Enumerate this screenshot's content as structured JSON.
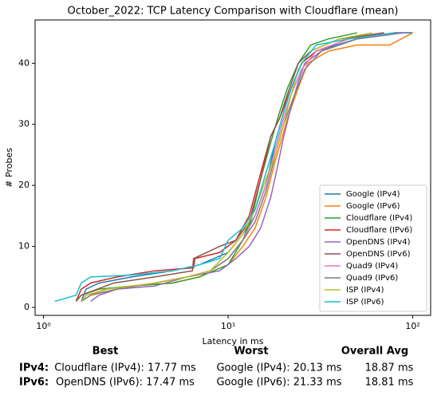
{
  "chart_data": {
    "type": "line",
    "title": "October_2022: TCP Latency Comparison with Cloudflare (mean)",
    "xlabel": "Latency in ms",
    "ylabel": "# Probes",
    "xscale": "log",
    "xlim": [
      0.9,
      125
    ],
    "ylim": [
      -1.3,
      47.1
    ],
    "xticks": [
      {
        "value": 1,
        "label": "10⁰"
      },
      {
        "value": 10,
        "label": "10¹"
      },
      {
        "value": 100,
        "label": "10²"
      }
    ],
    "yticks": [
      0,
      10,
      20,
      30,
      40
    ],
    "legend": "lower right",
    "series": [
      {
        "name": "Google (IPv4)",
        "color": "#1f77b4",
        "x": [
          1.6,
          1.7,
          2,
          3,
          5,
          7,
          10,
          12,
          14,
          16,
          18,
          20,
          22,
          25,
          30,
          50,
          80,
          100
        ],
        "values": [
          1,
          3,
          4,
          5,
          6,
          7,
          9,
          12,
          15,
          20,
          27,
          32,
          36,
          40,
          42,
          44,
          45,
          45
        ]
      },
      {
        "name": "Google (IPv6)",
        "color": "#ff7f0e",
        "x": [
          1.6,
          1.8,
          2.2,
          3,
          5,
          7,
          10,
          12,
          14,
          16,
          18,
          21,
          24,
          27,
          35,
          50,
          75,
          100
        ],
        "values": [
          1,
          2,
          3,
          3.5,
          4,
          5,
          7,
          10,
          13,
          18,
          24,
          31,
          36,
          40,
          42,
          43,
          43,
          45
        ]
      },
      {
        "name": "Cloudflare (IPv4)",
        "color": "#2ca02c",
        "x": [
          1.5,
          1.6,
          2,
          3,
          5,
          7,
          10,
          12,
          13.5,
          15,
          17,
          19,
          21,
          24,
          28,
          35,
          50
        ],
        "values": [
          1,
          2,
          3,
          3.5,
          4,
          5,
          7,
          11,
          15,
          21,
          27,
          32,
          36,
          40,
          43,
          44,
          45
        ]
      },
      {
        "name": "Cloudflare (IPv6)",
        "color": "#d62728",
        "x": [
          1.5,
          1.6,
          1.8,
          2.5,
          4,
          6.5,
          6.6,
          9,
          11,
          13,
          15,
          17,
          19,
          22,
          25,
          30,
          45,
          70
        ],
        "values": [
          1,
          3,
          4,
          5,
          6,
          6.5,
          8,
          9,
          11,
          15,
          22,
          28,
          31,
          36,
          40,
          42,
          44,
          45
        ]
      },
      {
        "name": "OpenDNS (IPv4)",
        "color": "#9467bd",
        "x": [
          1.8,
          2,
          2.5,
          4,
          6,
          9,
          11,
          13,
          15,
          17,
          18.5,
          20,
          22,
          24,
          26,
          32,
          50,
          90
        ],
        "values": [
          1,
          2,
          3,
          3.5,
          5,
          6,
          8,
          10,
          13,
          18,
          23,
          28,
          33,
          37,
          40,
          42,
          44,
          45
        ]
      },
      {
        "name": "OpenDNS (IPv6)",
        "color": "#8c564b",
        "x": [
          1.5,
          1.6,
          2.4,
          4,
          6.4,
          6.5,
          9,
          11,
          13,
          15,
          17,
          19,
          21,
          24,
          28,
          40,
          70
        ],
        "values": [
          1,
          2,
          4,
          5,
          6,
          8,
          10,
          11,
          14,
          21,
          28,
          31,
          35,
          40,
          42,
          44,
          45
        ]
      },
      {
        "name": "Quad9 (IPv4)",
        "color": "#e377c2",
        "x": [
          1.6,
          1.8,
          2.5,
          4,
          6,
          8,
          10,
          12,
          14,
          16,
          18,
          20,
          22,
          25,
          30,
          45,
          80
        ],
        "values": [
          1,
          2,
          3,
          4,
          5,
          6,
          8,
          11,
          15,
          20,
          26,
          31,
          35,
          39,
          42,
          44,
          45
        ]
      },
      {
        "name": "Quad9 (IPv6)",
        "color": "#7f7f7f",
        "x": [
          1.6,
          1.8,
          2.5,
          4,
          6,
          8,
          10,
          12,
          14,
          16,
          18,
          20,
          23,
          26,
          32,
          50,
          85
        ],
        "values": [
          1,
          2,
          3,
          4,
          5,
          6,
          8,
          11,
          14,
          19,
          25,
          30,
          35,
          39,
          42,
          44,
          45
        ]
      },
      {
        "name": "ISP (IPv4)",
        "color": "#bcbd22",
        "x": [
          1.6,
          1.7,
          2.2,
          4,
          6,
          8,
          10,
          12,
          14,
          16,
          18,
          20,
          22,
          24,
          28,
          40,
          60
        ],
        "values": [
          1,
          2,
          3,
          4,
          5,
          6,
          9,
          12,
          16,
          21,
          25,
          30,
          35,
          39,
          42,
          44,
          45
        ]
      },
      {
        "name": "ISP (IPv6)",
        "color": "#17becf",
        "x": [
          1.15,
          1.5,
          1.6,
          1.8,
          3,
          5,
          7,
          9,
          10,
          12,
          14,
          16,
          18,
          20,
          22,
          25,
          30,
          45,
          80
        ],
        "values": [
          1,
          2,
          4,
          5,
          5.3,
          6,
          7,
          8,
          11,
          13,
          16,
          22,
          27,
          32,
          36,
          40,
          43,
          44,
          45
        ]
      }
    ]
  },
  "table": {
    "headers": [
      "Best",
      "Worst",
      "Overall Avg"
    ],
    "rows": [
      [
        "IPv4:",
        "Cloudflare (IPv4): 17.77 ms",
        "Google (IPv4): 20.13 ms",
        "18.87 ms"
      ],
      [
        "IPv6:",
        "OpenDNS (IPv6): 17.47 ms",
        "Google (IPv6): 21.33 ms",
        "18.81 ms"
      ]
    ]
  }
}
